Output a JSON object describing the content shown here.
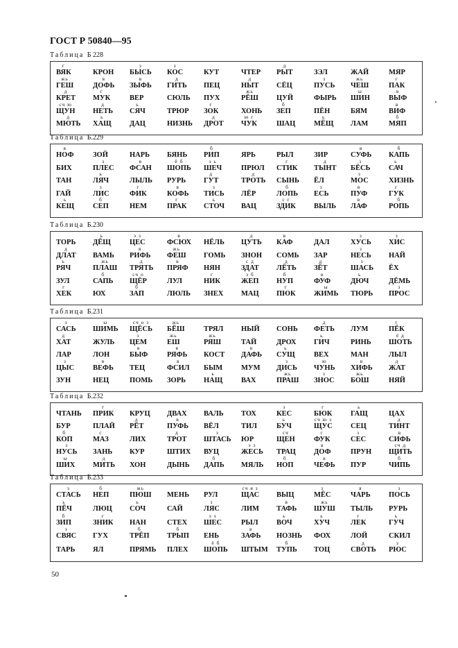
{
  "header": "ГОСТ Р 50840—95",
  "page_number": "50",
  "tables": [
    {
      "title_word": "Таблица",
      "title_num": "Б 228",
      "rows": [
        [
          [
            "ВЯК",
            "г"
          ],
          [
            "КРОН",
            ""
          ],
          [
            "БЫСЬ",
            "з"
          ],
          [
            "КОС",
            "з"
          ],
          [
            "КУТ",
            ""
          ],
          [
            "ЧТЕР",
            ""
          ],
          [
            "РЫТ",
            "д"
          ],
          [
            "ЗЭЛ",
            ""
          ],
          [
            "ЖАЙ",
            ""
          ],
          [
            "МЯР",
            ""
          ]
        ],
        [
          [
            "ГЕШ",
            "жь"
          ],
          [
            "ДОФЬ",
            "в"
          ],
          [
            "ЗЫФЬ",
            "в"
          ],
          [
            "ГИТЬ",
            "д"
          ],
          [
            "ПЕЦ",
            ""
          ],
          [
            "НЫТ",
            "д"
          ],
          [
            "СЁЦ",
            ""
          ],
          [
            "ПУСЬ",
            "з"
          ],
          [
            "ЧЕШ",
            "жь"
          ],
          [
            "ПАК",
            "г"
          ]
        ],
        [
          [
            "КРЕТ",
            "д"
          ],
          [
            "МУК",
            "г"
          ],
          [
            "ВЕР",
            ""
          ],
          [
            "СЮЛЬ",
            ""
          ],
          [
            "ПУХ",
            ""
          ],
          [
            "РЁШ",
            "жь"
          ],
          [
            "ЦУЙ",
            ""
          ],
          [
            "ФЫРЬ",
            ""
          ],
          [
            "ШИН",
            "ы"
          ],
          [
            "ВЫФ",
            "в"
          ]
        ],
        [
          [
            "ЩУН",
            "сч ю"
          ],
          [
            "НЕТЬ",
            "д"
          ],
          [
            "СЯЧ",
            "ь"
          ],
          [
            "ТРЮР",
            ""
          ],
          [
            "ЗОК",
            "г"
          ],
          [
            "ХОНЬ",
            ""
          ],
          [
            "ЗЕП",
            "б"
          ],
          [
            "ПЁН",
            ""
          ],
          [
            "БЯМ",
            ""
          ],
          [
            "ВИФ",
            "в"
          ]
        ],
        [
          [
            "МЮТЬ",
            "д"
          ],
          [
            "ХАЩ",
            "ь"
          ],
          [
            "ДАЦ",
            ""
          ],
          [
            "НИЗНЬ",
            ""
          ],
          [
            "ДРОТ",
            "д"
          ],
          [
            "ЧУК",
            "ю г"
          ],
          [
            "ШАЦ",
            ""
          ],
          [
            "МЁЩ",
            "ь"
          ],
          [
            "ЛАМ",
            ""
          ],
          [
            "МЯП",
            "б"
          ]
        ]
      ]
    },
    {
      "title_word": "Таблица",
      "title_num": "Б.229",
      "rows": [
        [
          [
            "НОФ",
            "в"
          ],
          [
            "ЗОЙ",
            ""
          ],
          [
            "НАРЬ",
            ""
          ],
          [
            "БЯНЬ",
            ""
          ],
          [
            "РИП",
            "б"
          ],
          [
            "ЯРЬ",
            ""
          ],
          [
            "РЫЛ",
            ""
          ],
          [
            "ЗИР",
            ""
          ],
          [
            "СУФЬ",
            "в"
          ],
          [
            "КАПЬ",
            "б"
          ]
        ],
        [
          [
            "БИХ",
            ""
          ],
          [
            "ПЛЕС",
            "з"
          ],
          [
            "ФСАН",
            "в"
          ],
          [
            "ШОПЬ",
            "ё б"
          ],
          [
            "ШЕЧ",
            "э ь"
          ],
          [
            "ПРЮЛ",
            ""
          ],
          [
            "СТИК",
            "г"
          ],
          [
            "ТЫНТ",
            "д"
          ],
          [
            "БЁСЬ",
            "з"
          ],
          [
            "САЧ",
            "ь"
          ]
        ],
        [
          [
            "ТАН",
            ""
          ],
          [
            "ЛЯЧ",
            "ь"
          ],
          [
            "ЛЫЛЬ",
            ""
          ],
          [
            "РУРЬ",
            ""
          ],
          [
            "ГУТ",
            "д"
          ],
          [
            "ТРОТЬ",
            "д"
          ],
          [
            "СЫНЬ",
            ""
          ],
          [
            "ЁЛ",
            ""
          ],
          [
            "МОС",
            "з"
          ],
          [
            "ХИЗНЬ",
            ""
          ]
        ],
        [
          [
            "ГАЙ",
            ""
          ],
          [
            "ЛИС",
            "з"
          ],
          [
            "ФИК",
            "г"
          ],
          [
            "КОФЬ",
            "в"
          ],
          [
            "ТИСЬ",
            "з"
          ],
          [
            "ЛЁР",
            ""
          ],
          [
            "ЛОПЬ",
            "б"
          ],
          [
            "ЕСЬ",
            "з"
          ],
          [
            "ПУФ",
            "в"
          ],
          [
            "ГУК",
            "г"
          ]
        ],
        [
          [
            "КЕЩ",
            "ь"
          ],
          [
            "СЕП",
            "б"
          ],
          [
            "НЕМ",
            ""
          ],
          [
            "ПРАК",
            "г"
          ],
          [
            "СТОЧ",
            "ь"
          ],
          [
            "ВАЦ",
            ""
          ],
          [
            "ЗДИК",
            "с г"
          ],
          [
            "ВЫЛЬ",
            ""
          ],
          [
            "ЛАФ",
            "в"
          ],
          [
            "РОПЬ",
            "б"
          ]
        ]
      ]
    },
    {
      "title_word": "Таблица",
      "title_num": "Б.230",
      "rows": [
        [
          [
            "ТОРЬ",
            ""
          ],
          [
            "ДЁЩ",
            "ь"
          ],
          [
            "ЦЕС",
            "э з"
          ],
          [
            "ФСЮХ",
            "в"
          ],
          [
            "НЁЛЬ",
            ""
          ],
          [
            "ЦУТЬ",
            "д"
          ],
          [
            "КАФ",
            "в"
          ],
          [
            "ДАЛ",
            ""
          ],
          [
            "ХУСЬ",
            "з"
          ],
          [
            "ХИС",
            "з"
          ]
        ],
        [
          [
            "ДЛАТ",
            "д"
          ],
          [
            "ВАМЬ",
            ""
          ],
          [
            "РИФЬ",
            "в"
          ],
          [
            "ФЕШ",
            "жь"
          ],
          [
            "ГОМЬ",
            ""
          ],
          [
            "ЗНОН",
            ""
          ],
          [
            "СОМЬ",
            ""
          ],
          [
            "ЗАР",
            ""
          ],
          [
            "НЕСЬ",
            "з"
          ],
          [
            "НАЙ",
            ""
          ]
        ],
        [
          [
            "РЯЧ",
            "ь"
          ],
          [
            "ПЛАШ",
            "жь"
          ],
          [
            "ТРЯТЬ",
            "д"
          ],
          [
            "ПРЯФ",
            "в"
          ],
          [
            "НЯН",
            ""
          ],
          [
            "ЗДАТ",
            "с д"
          ],
          [
            "ЛЁТЬ",
            "д"
          ],
          [
            "ЗЁТ",
            "д"
          ],
          [
            "ШАСЬ",
            "з"
          ],
          [
            "ЁХ",
            ""
          ]
        ],
        [
          [
            "ЗУЛ",
            ""
          ],
          [
            "САПЬ",
            "б"
          ],
          [
            "ЩЁР",
            "сч о"
          ],
          [
            "ЛУЛ",
            ""
          ],
          [
            "НИК",
            "г"
          ],
          [
            "ЖЕП",
            "э б"
          ],
          [
            "НУП",
            "б"
          ],
          [
            "ФУФ",
            "в"
          ],
          [
            "ДЮЧ",
            "ь"
          ],
          [
            "ДЁМЬ",
            ""
          ]
        ],
        [
          [
            "ХЕК",
            "г"
          ],
          [
            "ЮХ",
            ""
          ],
          [
            "ЗАП",
            "б"
          ],
          [
            "ЛЮЛЬ",
            ""
          ],
          [
            "ЗНЕХ",
            ""
          ],
          [
            "МАЦ",
            ""
          ],
          [
            "ПЮК",
            "г"
          ],
          [
            "ЖИМЬ",
            "ы"
          ],
          [
            "ТЮРЬ",
            ""
          ],
          [
            "ПРОС",
            "з"
          ]
        ]
      ]
    },
    {
      "title_word": "Таблица",
      "title_num": "Б.231",
      "rows": [
        [
          [
            "САСЬ",
            "з"
          ],
          [
            "ШИМЬ",
            "ы"
          ],
          [
            "ЩЁСЬ",
            "сч о з"
          ],
          [
            "БЁШ",
            "жь"
          ],
          [
            "ТРЯЛ",
            ""
          ],
          [
            "НЫЙ",
            ""
          ],
          [
            "СОНЬ",
            ""
          ],
          [
            "ФЕТЬ",
            "д"
          ],
          [
            "ЛУМ",
            ""
          ],
          [
            "ПЁК",
            "г"
          ]
        ],
        [
          [
            "ХАТ",
            "д"
          ],
          [
            "ЖУЛЬ",
            ""
          ],
          [
            "ЦЕМ",
            "э"
          ],
          [
            "ЕШ",
            "жь"
          ],
          [
            "РЯШ",
            "жь"
          ],
          [
            "ТАЙ",
            ""
          ],
          [
            "ДРОХ",
            ""
          ],
          [
            "ГИЧ",
            "ь"
          ],
          [
            "РИНЬ",
            ""
          ],
          [
            "ШОТЬ",
            "ё д"
          ]
        ],
        [
          [
            "ЛАР",
            ""
          ],
          [
            "ЛОН",
            ""
          ],
          [
            "БЫФ",
            "в"
          ],
          [
            "РЯФЬ",
            "в"
          ],
          [
            "КОСТ",
            ""
          ],
          [
            "ДАФЬ",
            "в"
          ],
          [
            "СУЩ",
            "ь"
          ],
          [
            "ВЕХ",
            ""
          ],
          [
            "МАН",
            ""
          ],
          [
            "ЛЫЛ",
            ""
          ]
        ],
        [
          [
            "ЦЫС",
            "з"
          ],
          [
            "ВЕФЬ",
            "в"
          ],
          [
            "ТЕЦ",
            ""
          ],
          [
            "ФСИЛ",
            "в"
          ],
          [
            "БЫМ",
            ""
          ],
          [
            "МУМ",
            ""
          ],
          [
            "ДИСЬ",
            "з"
          ],
          [
            "ЧУНЬ",
            "ю"
          ],
          [
            "ХИФЬ",
            "в"
          ],
          [
            "ЖАТ",
            "д"
          ]
        ],
        [
          [
            "ЗУН",
            ""
          ],
          [
            "НЕЦ",
            ""
          ],
          [
            "ПОМЬ",
            ""
          ],
          [
            "ЗОРЬ",
            ""
          ],
          [
            "НАЩ",
            "ь"
          ],
          [
            "ВАХ",
            ""
          ],
          [
            "ПРАШ",
            "жь"
          ],
          [
            "ЗНОС",
            "з"
          ],
          [
            "БОШ",
            "жь"
          ],
          [
            "НЯЙ",
            ""
          ]
        ]
      ]
    },
    {
      "title_word": "Таблица",
      "title_num": "Б.232",
      "rows": [
        [
          [
            "ЧТАНЬ",
            ""
          ],
          [
            "ПРИК",
            "г"
          ],
          [
            "КРУЦ",
            ""
          ],
          [
            "ДВАХ",
            ""
          ],
          [
            "ВАЛЬ",
            ""
          ],
          [
            "ТОХ",
            ""
          ],
          [
            "КЕС",
            "з"
          ],
          [
            "БЮК",
            "г"
          ],
          [
            "ГАЩ",
            "ь"
          ],
          [
            "ЦАХ",
            ""
          ]
        ],
        [
          [
            "БУР",
            ""
          ],
          [
            "ПЛАЙ",
            ""
          ],
          [
            "РЁТ",
            "д"
          ],
          [
            "ПУФЬ",
            "в"
          ],
          [
            "ВЁЛ",
            ""
          ],
          [
            "ТИЛ",
            ""
          ],
          [
            "БУЧ",
            "ь"
          ],
          [
            "ЩУС",
            "сч ю з"
          ],
          [
            "СЕЦ",
            ""
          ],
          [
            "ТИНТ",
            "д"
          ]
        ],
        [
          [
            "КОП",
            "б"
          ],
          [
            "МАЗ",
            "с"
          ],
          [
            "ЛИХ",
            ""
          ],
          [
            "ТРОТ",
            "д"
          ],
          [
            "ШТАСЬ",
            "з"
          ],
          [
            "ЮР",
            ""
          ],
          [
            "ЩЕН",
            "сч"
          ],
          [
            "ФУК",
            "г"
          ],
          [
            "СЕС",
            "з"
          ],
          [
            "СИФЬ",
            "в"
          ]
        ],
        [
          [
            "НУСЬ",
            "з"
          ],
          [
            "ЗАНЬ",
            ""
          ],
          [
            "КУР",
            ""
          ],
          [
            "ШТИХ",
            ""
          ],
          [
            "ВУЦ",
            ""
          ],
          [
            "ЖЕСЬ",
            "э з"
          ],
          [
            "ТРАЦ",
            ""
          ],
          [
            "ДОФ",
            "в"
          ],
          [
            "ПРУН",
            ""
          ],
          [
            "ЩИТЬ",
            "сч д"
          ]
        ],
        [
          [
            "ШИХ",
            "ы"
          ],
          [
            "МИТЬ",
            "д"
          ],
          [
            "ХОН",
            ""
          ],
          [
            "ДЫНЬ",
            ""
          ],
          [
            "ДАПЬ",
            "б"
          ],
          [
            "МЯЛЬ",
            ""
          ],
          [
            "НОП",
            "б"
          ],
          [
            "ЧЕФЬ",
            "в"
          ],
          [
            "ПУР",
            ""
          ],
          [
            "ЧИПЬ",
            "б"
          ]
        ]
      ]
    },
    {
      "title_word": "Таблица",
      "title_num": "Б.233",
      "rows": [
        [
          [
            "СТАСЬ",
            "з"
          ],
          [
            "НЕП",
            "б"
          ],
          [
            "ПЮШ",
            "жь"
          ],
          [
            "МЕНЬ",
            ""
          ],
          [
            "РУЛ",
            ""
          ],
          [
            "ЩАС",
            "сч я з"
          ],
          [
            "ВЫЦ",
            ""
          ],
          [
            "МЁС",
            "з"
          ],
          [
            "ЧАРЬ",
            "я"
          ],
          [
            "ПОСЬ",
            "з"
          ]
        ],
        [
          [
            "ПЁЧ",
            "ь"
          ],
          [
            "ЛЮЦ",
            ""
          ],
          [
            "СОЧ",
            "ь"
          ],
          [
            "САЙ",
            ""
          ],
          [
            "ЛЯС",
            "з"
          ],
          [
            "ЛИМ",
            ""
          ],
          [
            "ТАФЬ",
            "в"
          ],
          [
            "ШУШ",
            "жь"
          ],
          [
            "ТЫЛЬ",
            ""
          ],
          [
            "РУРЬ",
            ""
          ]
        ],
        [
          [
            "ЗИП",
            "б"
          ],
          [
            "ЗНИК",
            "г"
          ],
          [
            "НАН",
            ""
          ],
          [
            "СТЕХ",
            ""
          ],
          [
            "ШЕС",
            "э з"
          ],
          [
            "РЫЛ",
            ""
          ],
          [
            "ВОЧ",
            "ь"
          ],
          [
            "ХУЧ",
            "ь"
          ],
          [
            "ЛЕК",
            "г"
          ],
          [
            "ГУЧ",
            "ь"
          ]
        ],
        [
          [
            "СВЯС",
            "з"
          ],
          [
            "ГУХ",
            ""
          ],
          [
            "ТРЁП",
            "б"
          ],
          [
            "ТРЫП",
            "б"
          ],
          [
            "ЕНЬ",
            ""
          ],
          [
            "ЗАФЬ",
            "в"
          ],
          [
            "НОЗНЬ",
            ""
          ],
          [
            "ФОХ",
            ""
          ],
          [
            "ЛОЙ",
            ""
          ],
          [
            "СКИЛ",
            ""
          ]
        ],
        [
          [
            "ТАРЬ",
            ""
          ],
          [
            "ЯЛ",
            ""
          ],
          [
            "ПРЯМЬ",
            ""
          ],
          [
            "ПЛЕХ",
            ""
          ],
          [
            "ШОПЬ",
            "ё б"
          ],
          [
            "ШТЫМ",
            ""
          ],
          [
            "ТУПЬ",
            "б"
          ],
          [
            "ТОЦ",
            ""
          ],
          [
            "СВОТЬ",
            "д"
          ],
          [
            "РЮС",
            "з"
          ]
        ]
      ]
    }
  ]
}
